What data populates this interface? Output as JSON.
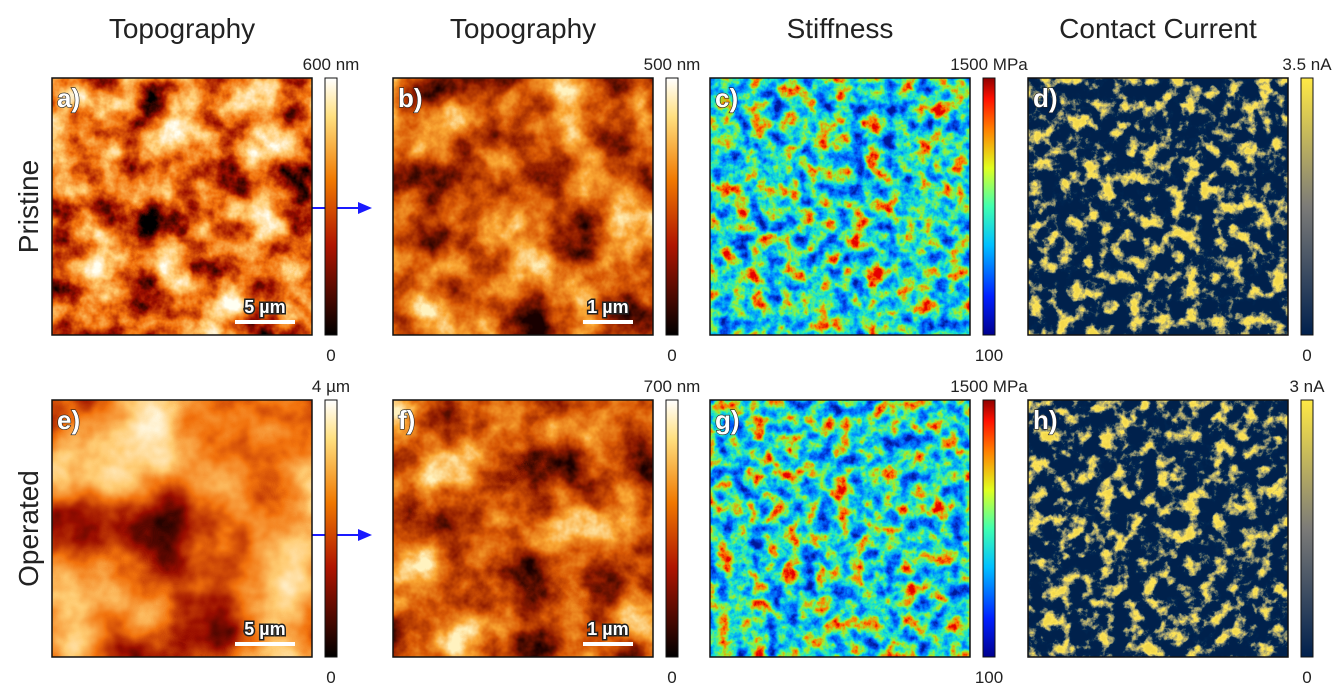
{
  "columns": [
    "Topography",
    "Topography",
    "Stiffness",
    "Contact Current"
  ],
  "rows": [
    "Pristine",
    "Operated"
  ],
  "panels": [
    {
      "label": "a)",
      "max": "600 nm",
      "min": "0",
      "scale": "5 µm"
    },
    {
      "label": "b)",
      "max": "500 nm",
      "min": "0",
      "scale": "1 µm"
    },
    {
      "label": "c)",
      "max": "1500 MPa",
      "min": "100"
    },
    {
      "label": "d)",
      "max": "3.5 nA",
      "min": "0"
    },
    {
      "label": "e)",
      "max": "4 µm",
      "min": "0",
      "scale": "5 µm"
    },
    {
      "label": "f)",
      "max": "700 nm",
      "min": "0",
      "scale": "1 µm"
    },
    {
      "label": "g)",
      "max": "1500 MPa",
      "min": "100"
    },
    {
      "label": "h)",
      "max": "3 nA",
      "min": "0"
    }
  ]
}
